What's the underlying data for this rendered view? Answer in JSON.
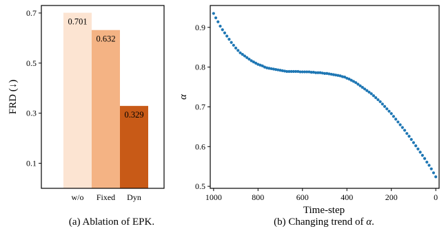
{
  "chart_data": [
    {
      "type": "bar",
      "categories": [
        "w/o",
        "Fixed",
        "Dyn"
      ],
      "values": [
        0.701,
        0.632,
        0.329
      ],
      "value_labels": [
        "0.701",
        "0.632",
        "0.329"
      ],
      "colors": [
        "#fce4d2",
        "#f4b384",
        "#c85a17"
      ],
      "ylabel": "FRD (↓)",
      "yticks": [
        "0.1",
        "0.3",
        "0.5",
        "0.7"
      ],
      "ytick_values": [
        0.1,
        0.3,
        0.5,
        0.7
      ],
      "ylim": [
        0.0,
        0.73
      ],
      "caption": "(a) Ablation of EPK."
    },
    {
      "type": "scatter",
      "xlabel": "Time-step",
      "ylabel": "α",
      "xlim": [
        1015,
        -15
      ],
      "ylim": [
        0.495,
        0.955
      ],
      "xticks": [
        "1000",
        "800",
        "600",
        "400",
        "200",
        "0"
      ],
      "xtick_values": [
        1000,
        800,
        600,
        400,
        200,
        0
      ],
      "yticks": [
        "0.5",
        "0.6",
        "0.7",
        "0.8",
        "0.9"
      ],
      "ytick_values": [
        0.5,
        0.6,
        0.7,
        0.8,
        0.9
      ],
      "point_color": "#1f77b4",
      "caption_prefix": "(b) Changing trend of ",
      "caption_symbol": "α",
      "caption_suffix": ".",
      "x": [
        1000,
        990,
        980,
        970,
        960,
        950,
        940,
        930,
        920,
        910,
        900,
        890,
        880,
        870,
        860,
        850,
        840,
        830,
        820,
        810,
        800,
        790,
        780,
        770,
        760,
        750,
        740,
        730,
        720,
        710,
        700,
        690,
        680,
        670,
        660,
        650,
        640,
        630,
        620,
        610,
        600,
        590,
        580,
        570,
        560,
        550,
        540,
        530,
        520,
        510,
        500,
        490,
        480,
        470,
        460,
        450,
        440,
        430,
        420,
        410,
        400,
        390,
        380,
        370,
        360,
        350,
        340,
        330,
        320,
        310,
        300,
        290,
        280,
        270,
        260,
        250,
        240,
        230,
        220,
        210,
        200,
        190,
        180,
        170,
        160,
        150,
        140,
        130,
        120,
        110,
        100,
        90,
        80,
        70,
        60,
        50,
        40,
        30,
        20,
        10,
        0
      ],
      "y": [
        0.935,
        0.924,
        0.914,
        0.903,
        0.894,
        0.886,
        0.878,
        0.87,
        0.862,
        0.855,
        0.848,
        0.842,
        0.836,
        0.832,
        0.828,
        0.824,
        0.82,
        0.816,
        0.813,
        0.81,
        0.807,
        0.805,
        0.803,
        0.8,
        0.798,
        0.797,
        0.796,
        0.795,
        0.794,
        0.793,
        0.792,
        0.791,
        0.79,
        0.789,
        0.789,
        0.789,
        0.789,
        0.789,
        0.789,
        0.788,
        0.788,
        0.788,
        0.788,
        0.788,
        0.787,
        0.787,
        0.786,
        0.786,
        0.786,
        0.785,
        0.784,
        0.784,
        0.783,
        0.782,
        0.781,
        0.78,
        0.779,
        0.778,
        0.776,
        0.775,
        0.772,
        0.77,
        0.767,
        0.764,
        0.761,
        0.757,
        0.753,
        0.749,
        0.745,
        0.741,
        0.737,
        0.733,
        0.728,
        0.723,
        0.718,
        0.713,
        0.707,
        0.701,
        0.695,
        0.689,
        0.683,
        0.676,
        0.669,
        0.662,
        0.655,
        0.648,
        0.641,
        0.633,
        0.626,
        0.618,
        0.61,
        0.602,
        0.594,
        0.586,
        0.578,
        0.57,
        0.561,
        0.553,
        0.544,
        0.534,
        0.524
      ]
    }
  ]
}
